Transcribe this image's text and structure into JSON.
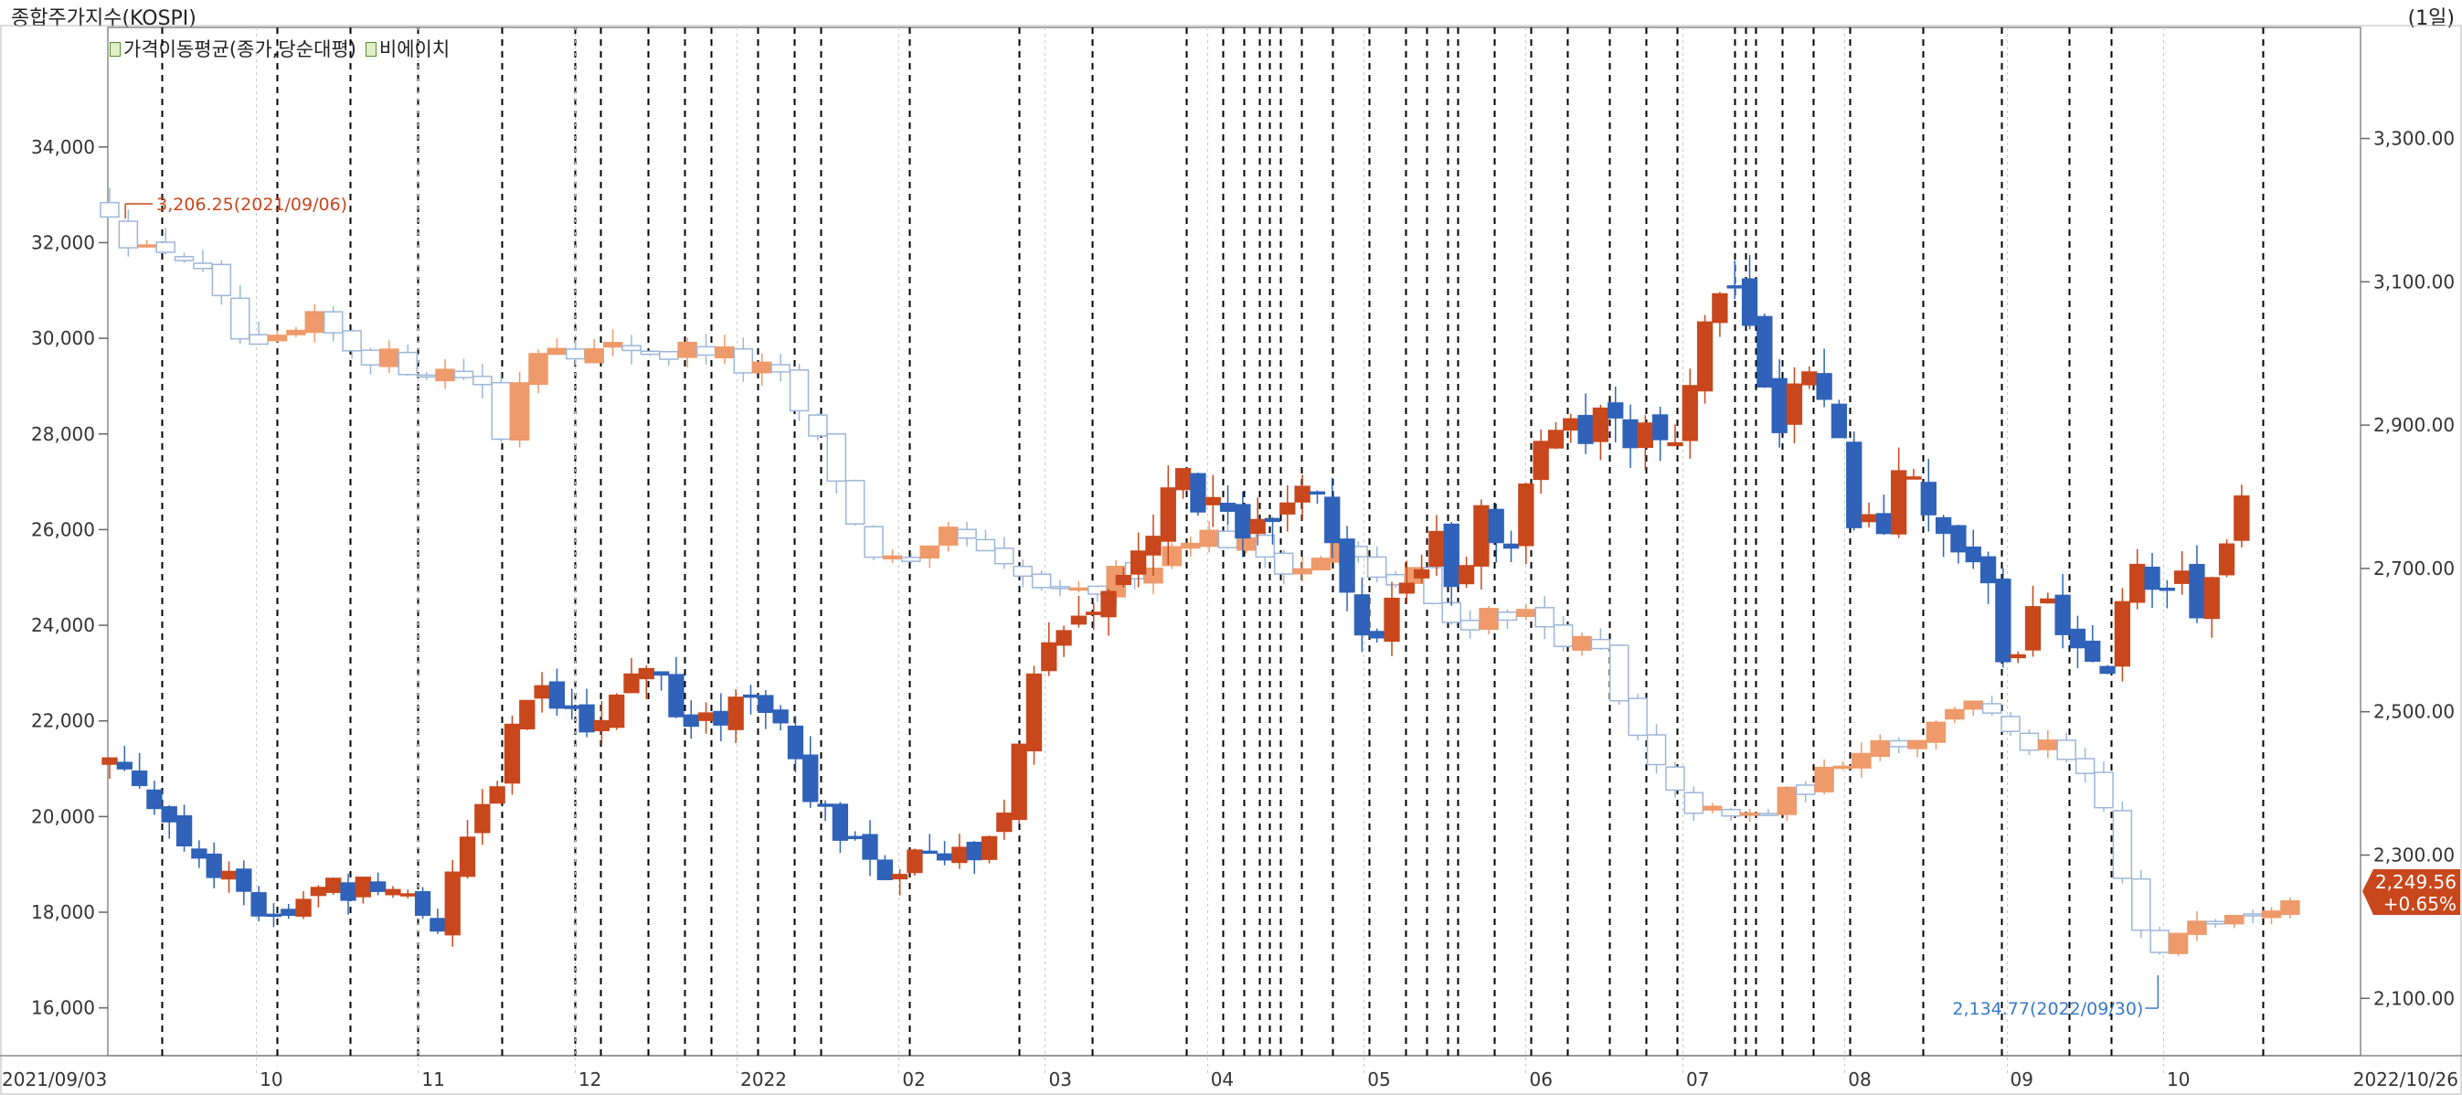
{
  "header": {
    "title": "종합주가지수(KOSPI)",
    "period": "(1일)"
  },
  "legend": [
    {
      "label": "가격이동평균(종가,당순대평)",
      "icon": "legend-box-icon"
    },
    {
      "label": "비에이치",
      "icon": "legend-box-icon"
    }
  ],
  "colors": {
    "up": "#c8471c",
    "down": "#2f62b8",
    "kospi_up": "#ee9a6a",
    "kospi_down": "#9db6d8",
    "event_line": "#000000",
    "price_badge": "#c8471c",
    "annotation_high": "#c8471c",
    "annotation_low": "#3a78c8"
  },
  "chart_data": {
    "type": "candlestick",
    "x_range": [
      "2021/09/03",
      "2022/10/26"
    ],
    "x_tick_labels": [
      "2021/09/03",
      "10",
      "11",
      "12",
      "2022",
      "02",
      "03",
      "04",
      "05",
      "06",
      "07",
      "08",
      "09",
      "10",
      "2022/10/26"
    ],
    "left_axis": {
      "ylim": [
        15000,
        36500
      ],
      "tick_labels": [
        "16,000",
        "18,000",
        "20,000",
        "22,000",
        "24,000",
        "26,000",
        "28,000",
        "30,000",
        "32,000",
        "34,000"
      ]
    },
    "right_axis": {
      "ylim": [
        2020,
        3455
      ],
      "tick_labels": [
        "2,100.00",
        "2,300.00",
        "2,500.00",
        "2,700.00",
        "2,900.00",
        "3,100.00",
        "3,300.00"
      ]
    },
    "grid": "vertical dashed event lines",
    "series": [
      {
        "name": "비에이치",
        "axis": "left",
        "anchors_close": [
          [
            0,
            21200
          ],
          [
            8,
            20700
          ],
          [
            15,
            20100
          ],
          [
            25,
            19200
          ],
          [
            35,
            18300
          ],
          [
            42,
            17800
          ],
          [
            55,
            18400
          ],
          [
            65,
            18500
          ],
          [
            75,
            18800
          ],
          [
            82,
            18200
          ],
          [
            88,
            17800
          ],
          [
            95,
            19700
          ],
          [
            100,
            20200
          ],
          [
            108,
            21700
          ],
          [
            115,
            22700
          ],
          [
            125,
            22100
          ],
          [
            132,
            22200
          ],
          [
            142,
            23200
          ],
          [
            150,
            22500
          ],
          [
            158,
            21700
          ],
          [
            170,
            22300
          ],
          [
            178,
            22600
          ],
          [
            185,
            21200
          ],
          [
            190,
            20300
          ],
          [
            195,
            19700
          ],
          [
            205,
            18900
          ],
          [
            215,
            19000
          ],
          [
            225,
            19300
          ],
          [
            232,
            19000
          ],
          [
            240,
            20200
          ],
          [
            248,
            22700
          ],
          [
            255,
            23800
          ],
          [
            262,
            24200
          ],
          [
            270,
            25200
          ],
          [
            280,
            25900
          ],
          [
            288,
            27200
          ],
          [
            298,
            26200
          ],
          [
            305,
            25500
          ],
          [
            312,
            26600
          ],
          [
            320,
            26800
          ],
          [
            325,
            26500
          ],
          [
            332,
            24300
          ],
          [
            340,
            23800
          ],
          [
            345,
            24300
          ],
          [
            355,
            25600
          ],
          [
            362,
            25100
          ],
          [
            370,
            26700
          ],
          [
            375,
            25400
          ],
          [
            382,
            28000
          ],
          [
            388,
            28000
          ],
          [
            395,
            27800
          ],
          [
            402,
            28300
          ],
          [
            410,
            27600
          ],
          [
            415,
            28000
          ],
          [
            420,
            27900
          ],
          [
            425,
            29700
          ],
          [
            435,
            30700
          ],
          [
            440,
            30400
          ],
          [
            448,
            28500
          ],
          [
            455,
            28900
          ],
          [
            462,
            28200
          ],
          [
            468,
            26500
          ],
          [
            475,
            25800
          ],
          [
            480,
            27000
          ],
          [
            485,
            27400
          ],
          [
            490,
            26100
          ],
          [
            495,
            25600
          ],
          [
            502,
            25000
          ],
          [
            508,
            23500
          ],
          [
            515,
            24000
          ],
          [
            520,
            24600
          ],
          [
            525,
            24100
          ],
          [
            530,
            23600
          ],
          [
            535,
            23000
          ],
          [
            540,
            24800
          ],
          [
            548,
            25000
          ],
          [
            555,
            24900
          ],
          [
            560,
            24000
          ],
          [
            565,
            25400
          ],
          [
            572,
            26700
          ]
        ],
        "close_label": null
      },
      {
        "name": "KOSPI",
        "axis": "right",
        "anchors_close": [
          [
            0,
            3206
          ],
          [
            3,
            3190
          ],
          [
            8,
            3130
          ],
          [
            15,
            3150
          ],
          [
            22,
            3130
          ],
          [
            28,
            3080
          ],
          [
            32,
            3050
          ],
          [
            38,
            2990
          ],
          [
            45,
            3010
          ],
          [
            55,
            3040
          ],
          [
            65,
            3010
          ],
          [
            75,
            2990
          ],
          [
            85,
            2980
          ],
          [
            95,
            2970
          ],
          [
            100,
            2960
          ],
          [
            105,
            2880
          ],
          [
            112,
            3000
          ],
          [
            120,
            3020
          ],
          [
            130,
            3000
          ],
          [
            140,
            3010
          ],
          [
            150,
            3000
          ],
          [
            160,
            3010
          ],
          [
            170,
            2980
          ],
          [
            178,
            2970
          ],
          [
            182,
            2950
          ],
          [
            188,
            2890
          ],
          [
            195,
            2830
          ],
          [
            202,
            2730
          ],
          [
            210,
            2710
          ],
          [
            218,
            2690
          ],
          [
            222,
            2740
          ],
          [
            228,
            2750
          ],
          [
            238,
            2700
          ],
          [
            242,
            2690
          ],
          [
            248,
            2680
          ],
          [
            255,
            2660
          ],
          [
            262,
            2660
          ],
          [
            270,
            2690
          ],
          [
            280,
            2710
          ],
          [
            290,
            2750
          ],
          [
            300,
            2740
          ],
          [
            310,
            2720
          ],
          [
            318,
            2700
          ],
          [
            325,
            2710
          ],
          [
            332,
            2740
          ],
          [
            338,
            2680
          ],
          [
            345,
            2680
          ],
          [
            350,
            2700
          ],
          [
            355,
            2640
          ],
          [
            362,
            2620
          ],
          [
            370,
            2640
          ],
          [
            378,
            2640
          ],
          [
            385,
            2620
          ],
          [
            392,
            2600
          ],
          [
            400,
            2580
          ],
          [
            405,
            2510
          ],
          [
            412,
            2440
          ],
          [
            420,
            2380
          ],
          [
            428,
            2360
          ],
          [
            435,
            2350
          ],
          [
            445,
            2360
          ],
          [
            452,
            2390
          ],
          [
            460,
            2410
          ],
          [
            468,
            2450
          ],
          [
            475,
            2460
          ],
          [
            482,
            2460
          ],
          [
            490,
            2480
          ],
          [
            495,
            2510
          ],
          [
            500,
            2520
          ],
          [
            505,
            2490
          ],
          [
            510,
            2460
          ],
          [
            518,
            2450
          ],
          [
            523,
            2440
          ],
          [
            528,
            2410
          ],
          [
            533,
            2390
          ],
          [
            538,
            2320
          ],
          [
            541,
            2240
          ],
          [
            545,
            2190
          ],
          [
            548,
            2160
          ],
          [
            550,
            2155
          ],
          [
            555,
            2195
          ],
          [
            560,
            2220
          ],
          [
            565,
            2215
          ],
          [
            570,
            2225
          ],
          [
            575,
            2228
          ],
          [
            580,
            2235
          ],
          [
            586,
            2250
          ]
        ],
        "close_label": "2,249.56",
        "change_label": "+0.65%"
      }
    ],
    "annotations": [
      {
        "text": "3,206.25(2021/09/06)",
        "series": "KOSPI",
        "value": 3206.25,
        "date": "2021/09/06",
        "kind": "high"
      },
      {
        "text": "2,134.77(2022/09/30)",
        "series": "KOSPI",
        "value": 2134.77,
        "date": "2022/09/30",
        "kind": "low"
      }
    ],
    "event_lines_dates": [
      "2021/09/13",
      "2021/10/05",
      "2021/10/19",
      "2021/11/01",
      "2021/11/17",
      "2021/12/01",
      "2021/12/06",
      "2021/12/15",
      "2021/12/22",
      "2021/12/27",
      "2022/01/05",
      "2022/01/12",
      "2022/01/17",
      "2022/02/03",
      "2022/02/24",
      "2022/03/10",
      "2022/03/28",
      "2022/04/04",
      "2022/04/08",
      "2022/04/11",
      "2022/04/13",
      "2022/04/15",
      "2022/04/19",
      "2022/04/25",
      "2022/05/02",
      "2022/05/09",
      "2022/05/13",
      "2022/05/17",
      "2022/05/19",
      "2022/05/26",
      "2022/06/02",
      "2022/06/09",
      "2022/06/17",
      "2022/06/24",
      "2022/06/30",
      "2022/07/11",
      "2022/07/13",
      "2022/07/15",
      "2022/07/20",
      "2022/07/26",
      "2022/08/02",
      "2022/08/16",
      "2022/08/31",
      "2022/09/13",
      "2022/09/21",
      "2022/10/20"
    ]
  }
}
